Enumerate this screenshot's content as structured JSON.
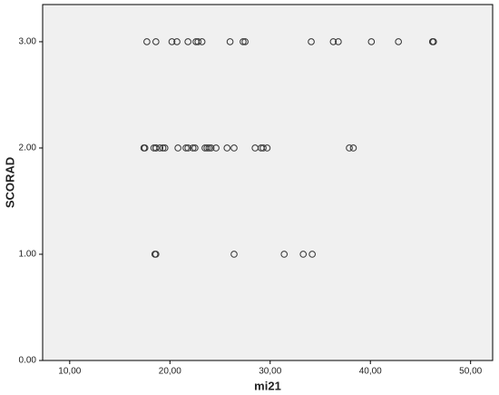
{
  "chart_data": {
    "type": "scatter",
    "x_label": "mi21",
    "y_label": "SCORAD",
    "x": [
      17.7,
      18.6,
      20.2,
      20.7,
      21.8,
      22.6,
      22.8,
      23.2,
      26.0,
      27.3,
      27.5,
      34.1,
      36.3,
      36.8,
      40.1,
      42.8,
      46.2,
      46.3,
      17.4,
      17.5,
      18.4,
      18.6,
      18.6,
      19.0,
      19.3,
      19.5,
      20.8,
      21.6,
      21.8,
      22.3,
      22.5,
      23.5,
      23.7,
      23.9,
      24.1,
      24.6,
      25.7,
      26.4,
      28.5,
      29.1,
      29.3,
      29.7,
      37.9,
      38.3,
      18.5,
      18.6,
      26.4,
      31.4,
      33.3,
      34.2
    ],
    "y": [
      3,
      3,
      3,
      3,
      3,
      3,
      3,
      3,
      3,
      3,
      3,
      3,
      3,
      3,
      3,
      3,
      3,
      3,
      2,
      2,
      2,
      2,
      2,
      2,
      2,
      2,
      2,
      2,
      2,
      2,
      2,
      2,
      2,
      2,
      2,
      2,
      2,
      2,
      2,
      2,
      2,
      2,
      2,
      2,
      1,
      1,
      1,
      1,
      1,
      1
    ],
    "color": "#333333",
    "xlim": [
      7.3,
      52.2
    ],
    "ylim": [
      0,
      3.35
    ],
    "xticks": [
      {
        "value": 10,
        "label": "10,00"
      },
      {
        "value": 20,
        "label": "20,00"
      },
      {
        "value": 30,
        "label": "30,00"
      },
      {
        "value": 40,
        "label": "40,00"
      },
      {
        "value": 50,
        "label": "50,00"
      }
    ],
    "yticks": [
      {
        "value": 0,
        "label": "0.00"
      },
      {
        "value": 1,
        "label": "1.00"
      },
      {
        "value": 2,
        "label": "2.00"
      },
      {
        "value": 3,
        "label": "3.00"
      }
    ]
  }
}
